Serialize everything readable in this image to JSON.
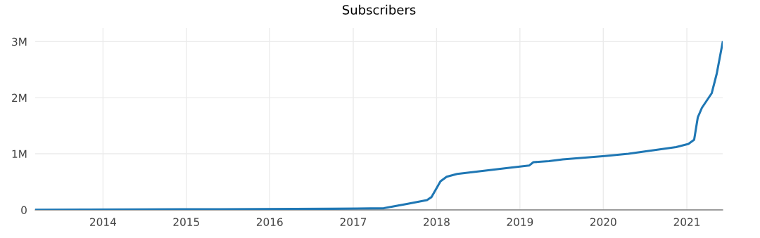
{
  "chart_data": {
    "type": "line",
    "title": "Subscribers",
    "x": [
      "2013-03-10",
      "2014-06-01",
      "2015-06-01",
      "2016-10-01",
      "2017-05-15",
      "2017-08-28",
      "2017-11-20",
      "2017-12-10",
      "2018-01-18",
      "2018-02-14",
      "2018-04-01",
      "2018-11-15",
      "2019-02-10",
      "2019-03-01",
      "2019-05-08",
      "2019-07-08",
      "2020-01-08",
      "2020-04-20",
      "2020-11-15",
      "2021-01-08",
      "2021-02-02",
      "2021-02-18",
      "2021-03-08",
      "2021-04-20",
      "2021-05-12",
      "2021-06-07"
    ],
    "series": [
      {
        "color": "#1f77b4",
        "values": [
          3000,
          10000,
          13000,
          20000,
          30000,
          110000,
          175000,
          230000,
          510000,
          590000,
          640000,
          750000,
          790000,
          850000,
          870000,
          900000,
          960000,
          1000000,
          1120000,
          1175000,
          1250000,
          1650000,
          1820000,
          2080000,
          2430000,
          2990000
        ]
      }
    ],
    "xlim": [
      "2013-03-10",
      "2021-06-07"
    ],
    "xticks": [
      {
        "value": "2014-01-01",
        "label": "2014"
      },
      {
        "value": "2015-01-01",
        "label": "2015"
      },
      {
        "value": "2016-01-01",
        "label": "2016"
      },
      {
        "value": "2017-01-01",
        "label": "2017"
      },
      {
        "value": "2018-01-01",
        "label": "2018"
      },
      {
        "value": "2019-01-01",
        "label": "2019"
      },
      {
        "value": "2020-01-01",
        "label": "2020"
      },
      {
        "value": "2021-01-01",
        "label": "2021"
      }
    ],
    "ylim": [
      0,
      3240000
    ],
    "yticks": [
      0,
      {
        "value": 1000000,
        "label": "1M"
      },
      {
        "value": 2000000,
        "label": "2M"
      },
      {
        "value": 3000000,
        "label": "3M"
      }
    ],
    "grid": true,
    "legend": false,
    "marker": "none",
    "line_style": "solid"
  }
}
